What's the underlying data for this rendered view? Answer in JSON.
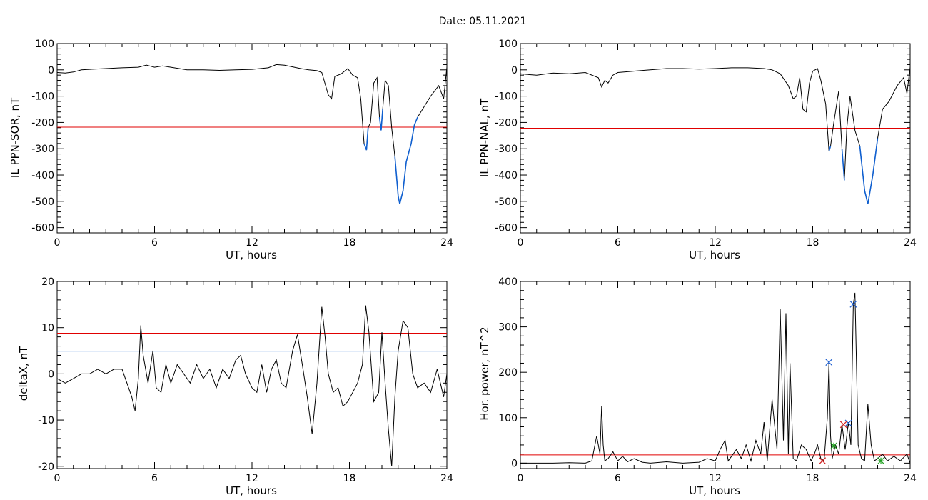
{
  "figure": {
    "title": "Date:  05.11.2021"
  },
  "colors": {
    "trace": "#000000",
    "threshold": "#e00000",
    "threshold2": "#1060d0",
    "highlight": "#1060d0",
    "marker_red": "#d02020",
    "marker_blue": "#2060d0",
    "marker_green": "#20a020"
  },
  "chart_data": [
    {
      "id": "p1",
      "type": "line",
      "xlabel": "UT, hours",
      "ylabel": "IL PPN-SOR, nT",
      "xlim": [
        0,
        24
      ],
      "ylim": [
        -620,
        100
      ],
      "xticks": [
        0,
        6,
        12,
        18,
        24
      ],
      "xtick_labels": [
        "0",
        "6",
        "12",
        "18",
        "24"
      ],
      "yticks": [
        100,
        0,
        -100,
        -200,
        -300,
        -400,
        -500,
        -600
      ],
      "ytick_labels": [
        "100",
        "0",
        "-100",
        "-200",
        "-300",
        "-400",
        "-500",
        "-600"
      ],
      "hlines": [
        {
          "y": -218,
          "color": "threshold"
        }
      ],
      "highlight_ranges": [
        [
          18.9,
          19.2
        ],
        [
          19.8,
          20.05
        ],
        [
          20.8,
          22.2
        ]
      ],
      "series": [
        {
          "x": [
            0,
            0.5,
            1,
            1.5,
            2,
            3,
            4,
            5,
            5.5,
            6,
            6.5,
            7,
            8,
            9,
            10,
            11,
            12,
            12.5,
            13,
            13.5,
            14,
            15,
            15.5,
            16,
            16.3,
            16.7,
            16.9,
            17.1,
            17.5,
            17.9,
            18.2,
            18.5,
            18.7,
            18.9,
            19.05,
            19.15,
            19.3,
            19.5,
            19.7,
            19.85,
            19.95,
            20.05,
            20.2,
            20.4,
            20.6,
            20.8,
            21.0,
            21.1,
            21.3,
            21.5,
            21.8,
            22.0,
            22.2,
            22.5,
            23.0,
            23.5,
            23.8,
            24
          ],
          "y": [
            -10,
            -12,
            -8,
            0,
            2,
            5,
            8,
            10,
            18,
            10,
            15,
            10,
            0,
            0,
            -2,
            0,
            2,
            5,
            8,
            20,
            18,
            5,
            0,
            -3,
            -10,
            -95,
            -110,
            -25,
            -15,
            5,
            -20,
            -30,
            -110,
            -280,
            -305,
            -220,
            -200,
            -50,
            -30,
            -180,
            -230,
            -150,
            -40,
            -60,
            -220,
            -330,
            -480,
            -510,
            -460,
            -350,
            -280,
            -210,
            -180,
            -150,
            -100,
            -60,
            -110,
            10
          ]
        }
      ]
    },
    {
      "id": "p2",
      "type": "line",
      "xlabel": "UT, hours",
      "ylabel": "IL PPN-NAL, nT",
      "xlim": [
        0,
        24
      ],
      "ylim": [
        -620,
        100
      ],
      "xticks": [
        0,
        6,
        12,
        18,
        24
      ],
      "xtick_labels": [
        "0",
        "6",
        "12",
        "18",
        "24"
      ],
      "yticks": [
        100,
        0,
        -100,
        -200,
        -300,
        -400,
        -500,
        -600
      ],
      "ytick_labels": [
        "100",
        "0",
        "-100",
        "-200",
        "-300",
        "-400",
        "-500",
        "-600"
      ],
      "hlines": [
        {
          "y": -222,
          "color": "threshold"
        }
      ],
      "highlight_ranges": [
        [
          18.9,
          19.2
        ],
        [
          19.8,
          20.05
        ],
        [
          20.9,
          22.2
        ]
      ],
      "series": [
        {
          "x": [
            0,
            0.5,
            1,
            2,
            3,
            4,
            4.8,
            5.0,
            5.2,
            5.4,
            5.7,
            6,
            7,
            8,
            9,
            10,
            11,
            12,
            13,
            14,
            15,
            15.5,
            16,
            16.5,
            16.8,
            17.0,
            17.2,
            17.4,
            17.6,
            17.8,
            18.0,
            18.3,
            18.5,
            18.8,
            19.0,
            19.1,
            19.3,
            19.6,
            19.8,
            19.95,
            20.1,
            20.3,
            20.6,
            20.9,
            21.2,
            21.4,
            21.7,
            22.0,
            22.3,
            22.7,
            23.2,
            23.6,
            23.8,
            24
          ],
          "y": [
            -15,
            -18,
            -20,
            -12,
            -15,
            -10,
            -30,
            -65,
            -40,
            -50,
            -20,
            -10,
            -5,
            0,
            5,
            5,
            3,
            5,
            8,
            8,
            5,
            0,
            -15,
            -60,
            -110,
            -100,
            -30,
            -150,
            -160,
            -50,
            -5,
            5,
            -40,
            -130,
            -310,
            -290,
            -200,
            -80,
            -300,
            -420,
            -220,
            -100,
            -230,
            -290,
            -460,
            -510,
            -400,
            -260,
            -150,
            -120,
            -60,
            -30,
            -90,
            10
          ]
        }
      ]
    },
    {
      "id": "p3",
      "type": "line",
      "xlabel": "UT, hours",
      "ylabel": "deltaX, nT",
      "xlim": [
        0,
        24
      ],
      "ylim": [
        -20.5,
        20
      ],
      "xticks": [
        0,
        6,
        12,
        18,
        24
      ],
      "xtick_labels": [
        "0",
        "6",
        "12",
        "18",
        "24"
      ],
      "yticks": [
        20,
        10,
        0,
        -10,
        -20
      ],
      "ytick_labels": [
        "20",
        "10",
        "0",
        "-10",
        "-20"
      ],
      "hlines": [
        {
          "y": 8.8,
          "color": "threshold"
        },
        {
          "y": 4.9,
          "color": "threshold2"
        }
      ],
      "series": [
        {
          "x": [
            0,
            0.5,
            1,
            1.5,
            2,
            2.5,
            3,
            3.5,
            4,
            4.3,
            4.6,
            4.8,
            5.0,
            5.15,
            5.3,
            5.6,
            5.9,
            6.1,
            6.4,
            6.7,
            7.0,
            7.4,
            7.8,
            8.2,
            8.6,
            9.0,
            9.4,
            9.8,
            10.2,
            10.6,
            11.0,
            11.3,
            11.6,
            12.0,
            12.3,
            12.6,
            12.9,
            13.2,
            13.5,
            13.8,
            14.1,
            14.5,
            14.8,
            15.1,
            15.4,
            15.7,
            16.0,
            16.3,
            16.5,
            16.7,
            17.0,
            17.3,
            17.6,
            17.9,
            18.2,
            18.5,
            18.8,
            19.0,
            19.2,
            19.5,
            19.8,
            20.0,
            20.2,
            20.4,
            20.6,
            20.8,
            21.0,
            21.3,
            21.6,
            21.9,
            22.2,
            22.6,
            23.0,
            23.4,
            23.8,
            24
          ],
          "y": [
            -1,
            -2,
            -1,
            0,
            0,
            1,
            0,
            1,
            1,
            -2,
            -5,
            -8,
            -1,
            10.5,
            4,
            -2,
            5,
            -3,
            -4,
            2,
            -2,
            2,
            0,
            -2,
            2,
            -1,
            1,
            -3,
            1,
            -1,
            3,
            4,
            0,
            -3,
            -4,
            2,
            -4,
            1,
            3,
            -2,
            -3,
            5,
            8.5,
            2,
            -5,
            -13,
            -2,
            14.5,
            8,
            0,
            -4,
            -3,
            -7,
            -6,
            -4,
            -2,
            2,
            14.8,
            9,
            -6,
            -4,
            9,
            -2,
            -12,
            -20,
            -5,
            5,
            11.5,
            10,
            0,
            -3,
            -2,
            -4,
            1,
            -5,
            0
          ]
        }
      ]
    },
    {
      "id": "p4",
      "type": "line",
      "xlabel": "UT, hours",
      "ylabel": "Hor. power, nT^2",
      "xlim": [
        0,
        24
      ],
      "ylim": [
        -12,
        400
      ],
      "xticks": [
        0,
        6,
        12,
        18,
        24
      ],
      "xtick_labels": [
        "0",
        "6",
        "12",
        "18",
        "24"
      ],
      "yticks": [
        400,
        300,
        200,
        100,
        0
      ],
      "ytick_labels": [
        "400",
        "300",
        "200",
        "100",
        "0"
      ],
      "hlines": [
        {
          "y": 18,
          "color": "threshold"
        }
      ],
      "markers": [
        {
          "x": 19.0,
          "y": 222,
          "color": "marker_blue",
          "shape": "x"
        },
        {
          "x": 20.5,
          "y": 350,
          "color": "marker_blue",
          "shape": "x"
        },
        {
          "x": 20.2,
          "y": 88,
          "color": "marker_blue",
          "shape": "x"
        },
        {
          "x": 19.9,
          "y": 85,
          "color": "marker_red",
          "shape": "x"
        },
        {
          "x": 19.3,
          "y": 38,
          "color": "marker_green",
          "shape": "*"
        },
        {
          "x": 18.6,
          "y": 5,
          "color": "marker_red",
          "shape": "x"
        },
        {
          "x": 22.2,
          "y": 5,
          "color": "marker_green",
          "shape": "*"
        }
      ],
      "series": [
        {
          "x": [
            0,
            1,
            2,
            3,
            4,
            4.4,
            4.7,
            4.9,
            5.0,
            5.1,
            5.2,
            5.4,
            5.7,
            6.0,
            6.3,
            6.6,
            7.0,
            7.5,
            8,
            9,
            10,
            11,
            11.5,
            12,
            12.3,
            12.6,
            12.8,
            13.0,
            13.3,
            13.6,
            13.9,
            14.2,
            14.5,
            14.8,
            15.0,
            15.2,
            15.5,
            15.8,
            16.0,
            16.2,
            16.35,
            16.5,
            16.6,
            16.8,
            17.0,
            17.3,
            17.6,
            17.9,
            18.1,
            18.3,
            18.5,
            18.7,
            18.9,
            19.0,
            19.1,
            19.2,
            19.4,
            19.6,
            19.8,
            20.0,
            20.2,
            20.35,
            20.5,
            20.6,
            20.8,
            21.0,
            21.2,
            21.4,
            21.6,
            21.8,
            22.0,
            22.3,
            22.6,
            23.0,
            23.4,
            23.8,
            24
          ],
          "y": [
            0,
            0,
            0,
            1,
            0,
            5,
            60,
            20,
            125,
            40,
            5,
            10,
            25,
            5,
            15,
            3,
            10,
            2,
            0,
            3,
            0,
            2,
            10,
            5,
            30,
            50,
            5,
            15,
            30,
            10,
            40,
            5,
            50,
            20,
            90,
            5,
            140,
            30,
            340,
            50,
            330,
            20,
            220,
            10,
            5,
            40,
            30,
            5,
            20,
            40,
            10,
            5,
            100,
            222,
            60,
            10,
            40,
            20,
            85,
            30,
            90,
            40,
            350,
            375,
            40,
            10,
            5,
            130,
            40,
            5,
            10,
            20,
            5,
            15,
            5,
            20,
            0
          ]
        }
      ]
    }
  ]
}
